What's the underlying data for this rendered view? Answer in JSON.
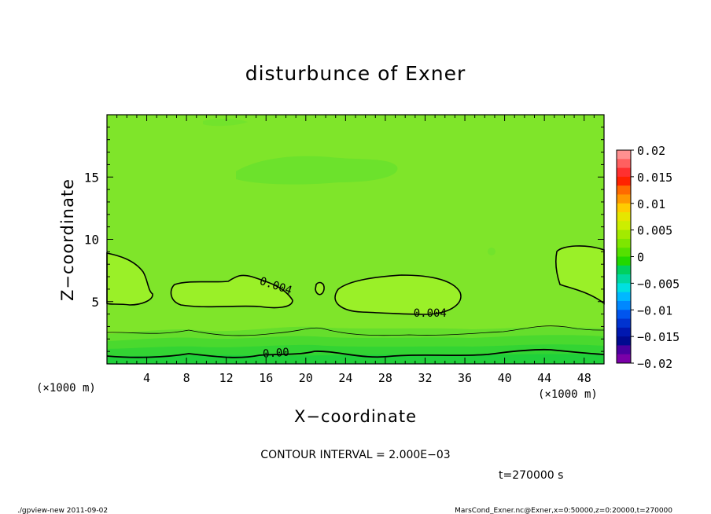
{
  "chart_data": {
    "type": "heatmap",
    "title": "disturbunce of Exner",
    "xlabel": "X−coordinate",
    "ylabel": "Z−coordinate",
    "x_unit": "(×1000 m)",
    "y_unit": "(×1000 m)",
    "xlim": [
      0,
      50
    ],
    "ylim": [
      0,
      20
    ],
    "x_ticks": [
      4,
      8,
      12,
      16,
      20,
      24,
      28,
      32,
      36,
      40,
      44,
      48
    ],
    "y_ticks": [
      5,
      10,
      15
    ],
    "colorbar": {
      "labels": [
        "0.02",
        "0.015",
        "0.01",
        "0.005",
        "0",
        "−0.005",
        "−0.01",
        "−0.015",
        "−0.02"
      ],
      "levels_top_to_bottom": [
        0.02,
        0.015,
        0.01,
        0.005,
        0,
        -0.005,
        -0.01,
        -0.015,
        -0.02
      ],
      "colors_top_to_bottom": [
        "#ff9090",
        "#ff6060",
        "#ff3030",
        "#ff2200",
        "#ff6a00",
        "#ff9900",
        "#ffcc00",
        "#e6e600",
        "#ccee00",
        "#a3ea00",
        "#7ee600",
        "#55e000",
        "#22d800",
        "#00d060",
        "#00d8a0",
        "#00e0e0",
        "#00b8ff",
        "#0088ff",
        "#0055ee",
        "#0033d0",
        "#0018b0",
        "#000a90",
        "#4a00a0",
        "#7a00a8"
      ]
    },
    "contour_labels": [
      {
        "text": "0.004",
        "x": 17.0,
        "z": 6.3
      },
      {
        "text": "0.004",
        "x": 32.5,
        "z": 4.1
      },
      {
        "text": "0.00",
        "x": 17.0,
        "z": 0.9
      }
    ],
    "background_value_color": "#7fe52a"
  },
  "contour_interval": "CONTOUR INTERVAL = 2.000E−03",
  "time_label": "t=270000 s",
  "footer_left": "./gpview-new   2011-09-02",
  "footer_right": "MarsCond_Exner.nc@Exner,x=0:50000,z=0:20000,t=270000"
}
